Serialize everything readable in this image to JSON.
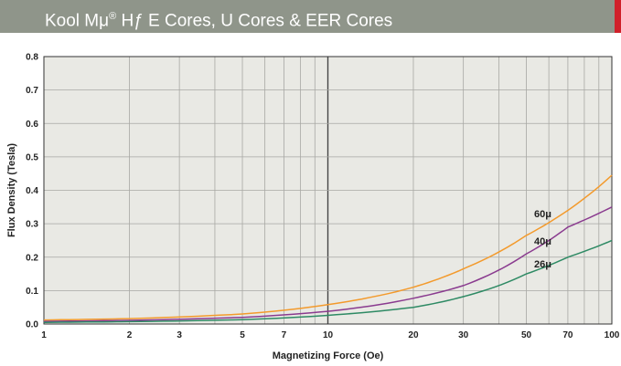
{
  "header": {
    "title_a": "Kool Mμ",
    "title_sup": "®",
    "title_b": " Hƒ E Cores, U Cores & EER Cores"
  },
  "chart_data": {
    "type": "line",
    "title": "",
    "xlabel": "Magnetizing Force (Oe)",
    "ylabel": "Flux Density (Tesla)",
    "xscale": "log",
    "xlim": [
      1,
      100
    ],
    "ylim": [
      0,
      0.8
    ],
    "grid": true,
    "xticks": [
      1,
      2,
      3,
      5,
      7,
      10,
      20,
      30,
      50,
      70,
      100
    ],
    "yticks": [
      0.0,
      0.1,
      0.2,
      0.3,
      0.4,
      0.5,
      0.6,
      0.7,
      0.8
    ],
    "ytick_labels": [
      "0.0",
      "0.1",
      "0.2",
      "0.3",
      "0.4",
      "0.5",
      "0.6",
      "0.7",
      "0.8"
    ],
    "x": [
      1,
      2,
      5,
      10,
      20,
      30,
      50,
      70,
      100
    ],
    "series": [
      {
        "name": "60μ",
        "color": "#f39a2c",
        "values": [
          0.012,
          0.016,
          0.03,
          0.058,
          0.11,
          0.165,
          0.265,
          0.34,
          0.445
        ]
      },
      {
        "name": "40μ",
        "color": "#8a3b8f",
        "values": [
          0.008,
          0.011,
          0.02,
          0.038,
          0.077,
          0.115,
          0.21,
          0.29,
          0.35
        ]
      },
      {
        "name": "26μ",
        "color": "#2e8a64",
        "values": [
          0.005,
          0.007,
          0.013,
          0.026,
          0.05,
          0.082,
          0.15,
          0.2,
          0.25
        ]
      }
    ]
  }
}
